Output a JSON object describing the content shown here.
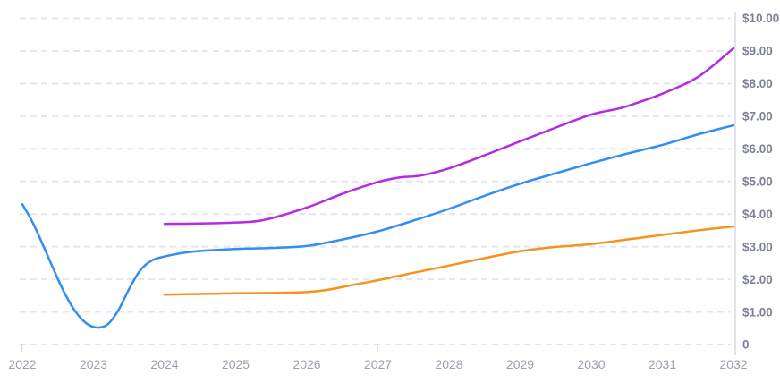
{
  "chart_data": {
    "type": "line",
    "title": "",
    "xlabel": "",
    "ylabel": "",
    "legend": "none",
    "grid": "horizontal-dashed",
    "y_axis_side": "right",
    "xlim": [
      2022,
      2032
    ],
    "ylim": [
      0,
      10
    ],
    "x_ticks": [
      "2022",
      "2023",
      "2024",
      "2025",
      "2026",
      "2027",
      "2028",
      "2029",
      "2030",
      "2031",
      "2032"
    ],
    "x_tick_values": [
      2022,
      2023,
      2024,
      2025,
      2026,
      2027,
      2028,
      2029,
      2030,
      2031,
      2032
    ],
    "y_ticks": [
      "$10.00",
      "$9.00",
      "$8.00",
      "$7.00",
      "$6.00",
      "$5.00",
      "$4.00",
      "$3.00",
      "$2.00",
      "$1.00",
      "0"
    ],
    "y_tick_values": [
      10,
      9,
      8,
      7,
      6,
      5,
      4,
      3,
      2,
      1,
      0
    ],
    "series": [
      {
        "name": "blue-series",
        "color": "#338ef2",
        "points": [
          [
            2022,
            4.3
          ],
          [
            2022.15,
            3.72
          ],
          [
            2022.3,
            3.0
          ],
          [
            2022.45,
            2.25
          ],
          [
            2022.6,
            1.55
          ],
          [
            2022.75,
            1.0
          ],
          [
            2022.9,
            0.65
          ],
          [
            2023.05,
            0.52
          ],
          [
            2023.2,
            0.62
          ],
          [
            2023.35,
            1.05
          ],
          [
            2023.5,
            1.7
          ],
          [
            2023.65,
            2.25
          ],
          [
            2023.8,
            2.55
          ],
          [
            2024,
            2.7
          ],
          [
            2024.4,
            2.85
          ],
          [
            2025,
            2.93
          ],
          [
            2025.5,
            2.96
          ],
          [
            2026,
            3.02
          ],
          [
            2026.5,
            3.22
          ],
          [
            2027,
            3.47
          ],
          [
            2027.5,
            3.8
          ],
          [
            2028,
            4.16
          ],
          [
            2028.5,
            4.56
          ],
          [
            2029,
            4.93
          ],
          [
            2029.5,
            5.25
          ],
          [
            2030,
            5.56
          ],
          [
            2030.5,
            5.85
          ],
          [
            2031,
            6.12
          ],
          [
            2031.5,
            6.44
          ],
          [
            2032,
            6.72
          ]
        ]
      },
      {
        "name": "magenta-series",
        "color": "#b32be3",
        "points": [
          [
            2024,
            3.7
          ],
          [
            2024.5,
            3.71
          ],
          [
            2025,
            3.74
          ],
          [
            2025.4,
            3.82
          ],
          [
            2026,
            4.2
          ],
          [
            2026.5,
            4.62
          ],
          [
            2027,
            4.98
          ],
          [
            2027.3,
            5.12
          ],
          [
            2027.6,
            5.18
          ],
          [
            2028,
            5.4
          ],
          [
            2028.5,
            5.8
          ],
          [
            2029,
            6.23
          ],
          [
            2029.5,
            6.65
          ],
          [
            2030,
            7.05
          ],
          [
            2030.4,
            7.24
          ],
          [
            2030.7,
            7.45
          ],
          [
            2031,
            7.69
          ],
          [
            2031.5,
            8.2
          ],
          [
            2032,
            9.08
          ]
        ]
      },
      {
        "name": "orange-series",
        "color": "#f6921e",
        "points": [
          [
            2024,
            1.53
          ],
          [
            2024.5,
            1.55
          ],
          [
            2025,
            1.57
          ],
          [
            2025.5,
            1.58
          ],
          [
            2026,
            1.61
          ],
          [
            2026.3,
            1.68
          ],
          [
            2026.7,
            1.85
          ],
          [
            2027,
            1.97
          ],
          [
            2027.5,
            2.2
          ],
          [
            2028,
            2.42
          ],
          [
            2028.5,
            2.65
          ],
          [
            2029,
            2.86
          ],
          [
            2029.4,
            2.97
          ],
          [
            2030,
            3.08
          ],
          [
            2030.5,
            3.22
          ],
          [
            2031,
            3.36
          ],
          [
            2031.5,
            3.5
          ],
          [
            2032,
            3.62
          ]
        ]
      }
    ]
  },
  "style": {
    "background": "#ffffff",
    "gridline_color": "#e4e5f0",
    "axis_line_color": "#d8dae3",
    "y_label_color": "#7d8294",
    "x_label_color": "#9aa0ae",
    "line_width": 2.5
  }
}
